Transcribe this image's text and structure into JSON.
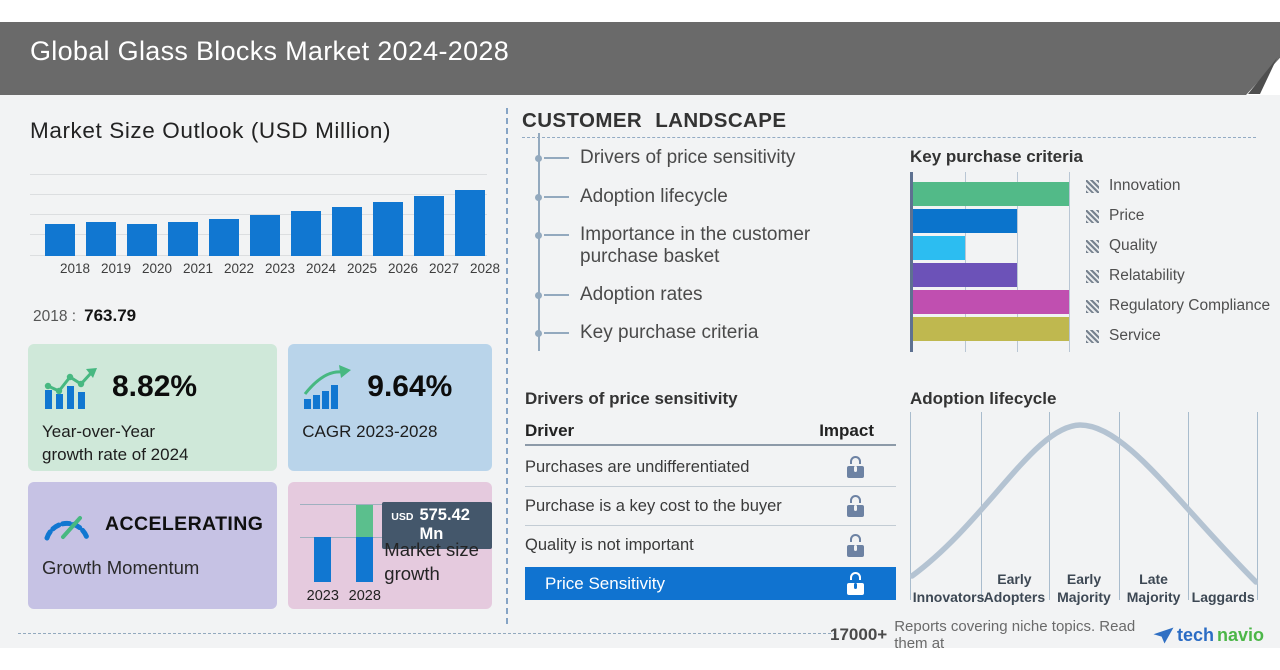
{
  "header": {
    "title": "Global Glass Blocks Market 2024-2028"
  },
  "market_outlook": {
    "title": "Market Size Outlook (USD Million)",
    "base_year_label": "2018 :",
    "base_year_value": "763.79"
  },
  "stats": {
    "yoy": {
      "value": "8.82%",
      "desc": "Year-over-Year\ngrowth rate of 2024"
    },
    "cagr": {
      "value": "9.64%",
      "desc": "CAGR 2023-2028"
    },
    "momentum": {
      "value": "ACCELERATING",
      "desc": "Growth Momentum"
    },
    "growth": {
      "currency": "USD",
      "amount": "575.42 Mn",
      "desc": "Market size\ngrowth",
      "start_year": "2023",
      "end_year": "2028"
    }
  },
  "customer_landscape": {
    "title": "CUSTOMER LANDSCAPE",
    "items": [
      "Drivers of price sensitivity",
      "Adoption lifecycle",
      "Importance in the customer purchase basket",
      "Adoption rates",
      "Key purchase criteria"
    ]
  },
  "price_table": {
    "title": "Drivers of price sensitivity",
    "columns": {
      "driver": "Driver",
      "impact": "Impact"
    },
    "rows": [
      "Purchases are undifferentiated",
      "Purchase is a key cost to the buyer",
      "Quality is not important"
    ],
    "highlight_row": "Price Sensitivity",
    "impact_icon": "lock-icon"
  },
  "footer": {
    "count": "17000+",
    "message": "Reports covering niche topics. Read them at",
    "brand": {
      "part1": "tech",
      "part2": "navio"
    },
    "brand_icon": "paper-plane-icon"
  },
  "colors": {
    "banner_gray": "#6a6a6a",
    "bar_blue": "#1177d1",
    "highlight_blue": "#1073d0",
    "box_green": "#cfe8d9",
    "box_blue": "#b9d4ea",
    "box_purple": "#c6c2e4",
    "box_pink": "#e5cade",
    "badge_slate": "#44576b",
    "lock_slate": "#6d82a3",
    "curve_blue_gray": "#b4c3d2",
    "mini_growth_green": "#5bbf8d",
    "brand_blue": "#2b6cc4",
    "brand_green": "#4cb648"
  },
  "chart_data": [
    {
      "type": "bar",
      "title": "Market Size Outlook (USD Million)",
      "categories": [
        "2018",
        "2019",
        "2020",
        "2021",
        "2022",
        "2023",
        "2024",
        "2025",
        "2026",
        "2027",
        "2028"
      ],
      "values": [
        763.79,
        800,
        770,
        820,
        880,
        985,
        1072,
        1175,
        1290,
        1420,
        1560
      ],
      "value_note": "only 2018 = 763.79 labeled on screen; other values estimated from bar heights, 8.82% YoY 2024 and 9.64% CAGR 2023-2028",
      "ylabel": "USD Million",
      "grid": true,
      "bar_color": "#1177d1"
    },
    {
      "type": "bar",
      "orientation": "horizontal",
      "title": "Key purchase criteria",
      "categories": [
        "Innovation",
        "Price",
        "Quality",
        "Relatability",
        "Regulatory Compliance",
        "Service"
      ],
      "values": [
        3,
        2,
        1,
        2,
        3,
        3
      ],
      "xlim": [
        0,
        3
      ],
      "colors": [
        "#52ba88",
        "#0b74cc",
        "#2cbdf1",
        "#6c52b8",
        "#c04fb0",
        "#bfb84f"
      ],
      "legend_position": "right",
      "legend_marker": "gray-hatched-square"
    },
    {
      "type": "line",
      "title": "Adoption lifecycle",
      "shape": "bell-curve",
      "categories": [
        "Innovators",
        "Early Adopters",
        "Early Majority",
        "Late Majority",
        "Laggards"
      ],
      "peak_category": "Early Majority",
      "line_color": "#b4c3d2",
      "grid": true
    },
    {
      "type": "bar",
      "title": "Market size growth",
      "categories": [
        "2023",
        "2028"
      ],
      "segments": [
        {
          "category": "2023",
          "base": 1,
          "growth": 0
        },
        {
          "category": "2028",
          "base": 1,
          "growth": 0.71
        }
      ],
      "growth_label": "USD 575.42 Mn"
    }
  ]
}
